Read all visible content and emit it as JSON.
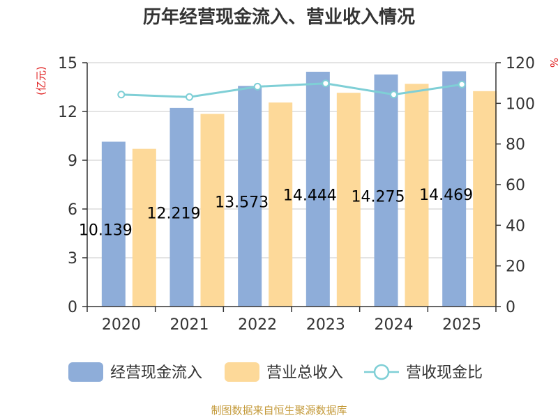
{
  "chart_data": {
    "type": "bar",
    "title": "历年经营现金流入、营业收入情况",
    "categories": [
      "2020",
      "2021",
      "2022",
      "2023",
      "2024",
      "2025"
    ],
    "series": [
      {
        "name": "经营现金流入",
        "type": "bar",
        "axis": "left",
        "color": "#8eadd9",
        "values": [
          10.139,
          12.219,
          13.573,
          14.444,
          14.275,
          14.469
        ]
      },
      {
        "name": "营业总收入",
        "type": "bar",
        "axis": "left",
        "color": "#fdd999",
        "values": [
          9.7,
          11.85,
          12.55,
          13.15,
          13.7,
          13.25
        ]
      },
      {
        "name": "营收现金比",
        "type": "line",
        "axis": "right",
        "color": "#7fcfd6",
        "values": [
          104.3,
          103.1,
          108.2,
          109.8,
          104.3,
          109.3
        ]
      }
    ],
    "data_labels": [
      "10.139",
      "12.219",
      "13.573",
      "14.444",
      "14.275",
      "14.469"
    ],
    "y_left": {
      "label": "(亿元)",
      "ylim": [
        0,
        15
      ],
      "ticks": [
        0,
        3,
        6,
        9,
        12,
        15
      ],
      "tick_labels": [
        "0",
        "3",
        "6",
        "9",
        "12",
        "15"
      ]
    },
    "y_right": {
      "label": "%",
      "ylim": [
        0,
        120
      ],
      "ticks": [
        0,
        20,
        40,
        60,
        80,
        100,
        120
      ],
      "tick_labels": [
        "0",
        "20",
        "40",
        "60",
        "80",
        "100",
        "120"
      ]
    },
    "grid": true,
    "legend_position": "bottom"
  },
  "footer": {
    "source": "制图数据来自恒生聚源数据库"
  }
}
